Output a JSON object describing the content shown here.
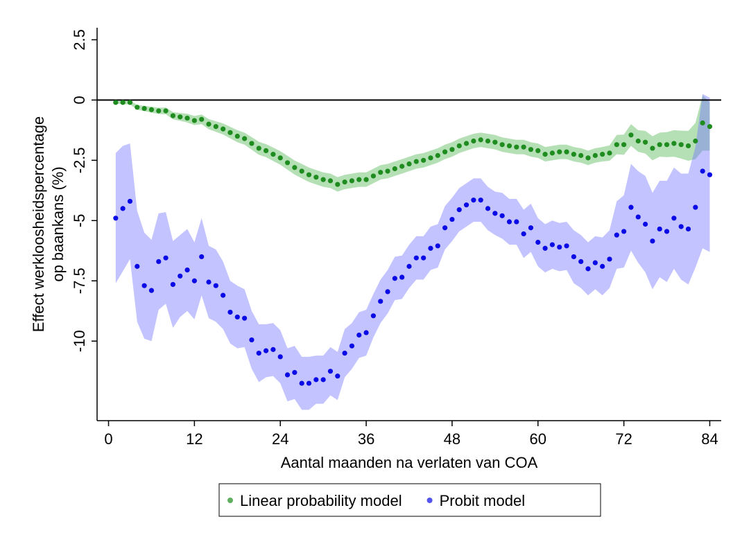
{
  "chart_data": {
    "type": "scatter_band",
    "x_label": "Aantal maanden na verlaten van COA",
    "y_label": [
      "Effect werkloosheidspercentage",
      "op baankans (%)"
    ],
    "x": [
      1,
      2,
      3,
      4,
      5,
      6,
      7,
      8,
      9,
      10,
      11,
      12,
      13,
      14,
      15,
      16,
      17,
      18,
      19,
      20,
      21,
      22,
      23,
      24,
      25,
      26,
      27,
      28,
      29,
      30,
      31,
      32,
      33,
      34,
      35,
      36,
      37,
      38,
      39,
      40,
      41,
      42,
      43,
      44,
      45,
      46,
      47,
      48,
      49,
      50,
      51,
      52,
      53,
      54,
      55,
      56,
      57,
      58,
      59,
      60,
      61,
      62,
      63,
      64,
      65,
      66,
      67,
      68,
      69,
      70,
      71,
      72,
      73,
      74,
      75,
      76,
      77,
      78,
      79,
      80,
      81,
      82,
      83,
      84
    ],
    "series": [
      {
        "name": "Linear probability model",
        "color": "#1e8c1e",
        "band_color": "#5cb85c",
        "values": [
          -0.1,
          -0.1,
          -0.1,
          -0.3,
          -0.35,
          -0.4,
          -0.45,
          -0.45,
          -0.65,
          -0.7,
          -0.75,
          -0.85,
          -0.8,
          -1.0,
          -1.1,
          -1.2,
          -1.35,
          -1.5,
          -1.6,
          -1.8,
          -2.0,
          -2.1,
          -2.25,
          -2.4,
          -2.6,
          -2.8,
          -2.95,
          -3.1,
          -3.2,
          -3.3,
          -3.35,
          -3.5,
          -3.4,
          -3.35,
          -3.3,
          -3.3,
          -3.15,
          -3.0,
          -2.95,
          -2.85,
          -2.75,
          -2.65,
          -2.55,
          -2.5,
          -2.4,
          -2.3,
          -2.15,
          -2.05,
          -1.9,
          -1.8,
          -1.7,
          -1.65,
          -1.7,
          -1.75,
          -1.85,
          -1.9,
          -1.95,
          -1.95,
          -2.05,
          -2.1,
          -2.25,
          -2.2,
          -2.15,
          -2.15,
          -2.25,
          -2.3,
          -2.4,
          -2.3,
          -2.25,
          -2.2,
          -1.85,
          -1.85,
          -1.45,
          -1.7,
          -1.75,
          -2.0,
          -1.85,
          -1.85,
          -1.8,
          -1.85,
          -1.9,
          -1.7,
          -0.95,
          -1.1
        ],
        "errors": [
          0.05,
          0.07,
          0.08,
          0.1,
          0.11,
          0.12,
          0.13,
          0.14,
          0.15,
          0.16,
          0.18,
          0.19,
          0.2,
          0.21,
          0.22,
          0.23,
          0.24,
          0.25,
          0.25,
          0.26,
          0.27,
          0.27,
          0.28,
          0.28,
          0.29,
          0.29,
          0.3,
          0.3,
          0.3,
          0.3,
          0.3,
          0.3,
          0.3,
          0.3,
          0.3,
          0.3,
          0.3,
          0.3,
          0.3,
          0.3,
          0.3,
          0.3,
          0.3,
          0.3,
          0.3,
          0.3,
          0.3,
          0.3,
          0.3,
          0.3,
          0.3,
          0.3,
          0.3,
          0.3,
          0.3,
          0.3,
          0.3,
          0.3,
          0.3,
          0.3,
          0.3,
          0.3,
          0.3,
          0.3,
          0.3,
          0.3,
          0.3,
          0.3,
          0.3,
          0.32,
          0.4,
          0.42,
          0.45,
          0.45,
          0.47,
          0.5,
          0.5,
          0.52,
          0.55,
          0.58,
          0.62,
          0.75,
          1.15,
          1.0
        ]
      },
      {
        "name": "Probit model",
        "color": "#0a0ae6",
        "band_color": "#7b7bff",
        "values": [
          -4.9,
          -4.5,
          -4.2,
          -6.9,
          -7.7,
          -7.9,
          -6.7,
          -6.55,
          -7.65,
          -7.3,
          -7.05,
          -7.5,
          -6.5,
          -7.55,
          -7.7,
          -8.1,
          -8.8,
          -9.0,
          -9.05,
          -9.95,
          -10.5,
          -10.4,
          -10.35,
          -10.65,
          -11.4,
          -11.3,
          -11.75,
          -11.75,
          -11.6,
          -11.6,
          -11.25,
          -11.45,
          -10.5,
          -10.2,
          -9.75,
          -9.65,
          -8.95,
          -8.35,
          -7.95,
          -7.4,
          -7.35,
          -6.9,
          -6.55,
          -6.55,
          -6.15,
          -6.05,
          -5.3,
          -4.95,
          -4.55,
          -4.35,
          -4.15,
          -4.15,
          -4.5,
          -4.7,
          -4.8,
          -5.05,
          -5.05,
          -5.55,
          -5.3,
          -5.9,
          -6.15,
          -6.0,
          -6.1,
          -6.05,
          -6.5,
          -6.7,
          -7.0,
          -6.75,
          -6.9,
          -6.6,
          -5.6,
          -5.45,
          -4.45,
          -4.85,
          -5.15,
          -5.85,
          -5.35,
          -5.45,
          -4.9,
          -5.25,
          -5.35,
          -4.45,
          -2.95,
          -3.1
        ],
        "errors": [
          2.7,
          2.6,
          2.4,
          2.3,
          2.2,
          2.1,
          2.0,
          1.9,
          1.8,
          1.7,
          1.7,
          1.6,
          1.6,
          1.5,
          1.5,
          1.4,
          1.3,
          1.3,
          1.2,
          1.2,
          1.2,
          1.1,
          1.1,
          1.1,
          1.1,
          1.1,
          1.1,
          1.1,
          1.0,
          1.0,
          1.0,
          1.0,
          1.0,
          0.95,
          0.95,
          0.95,
          0.9,
          0.9,
          0.9,
          0.9,
          0.9,
          0.9,
          0.9,
          0.9,
          0.9,
          0.9,
          0.9,
          0.9,
          0.9,
          0.9,
          0.9,
          0.9,
          0.9,
          0.9,
          0.95,
          0.95,
          0.95,
          1.0,
          1.0,
          1.0,
          1.0,
          1.0,
          1.0,
          1.0,
          1.1,
          1.1,
          1.1,
          1.1,
          1.2,
          1.2,
          1.4,
          1.5,
          1.8,
          1.9,
          2.0,
          2.0,
          2.0,
          2.1,
          2.1,
          2.2,
          2.3,
          2.5,
          3.2,
          3.2
        ]
      }
    ],
    "xlim": [
      -1.6,
      85.6
    ],
    "ylim": [
      -13.3,
      3
    ],
    "xticks": [
      0,
      12,
      24,
      36,
      48,
      60,
      72,
      84
    ],
    "yticks": [
      2.5,
      0,
      -2.5,
      -5,
      -7.5,
      -10
    ],
    "reference_line": 0,
    "legend": "bottom"
  }
}
